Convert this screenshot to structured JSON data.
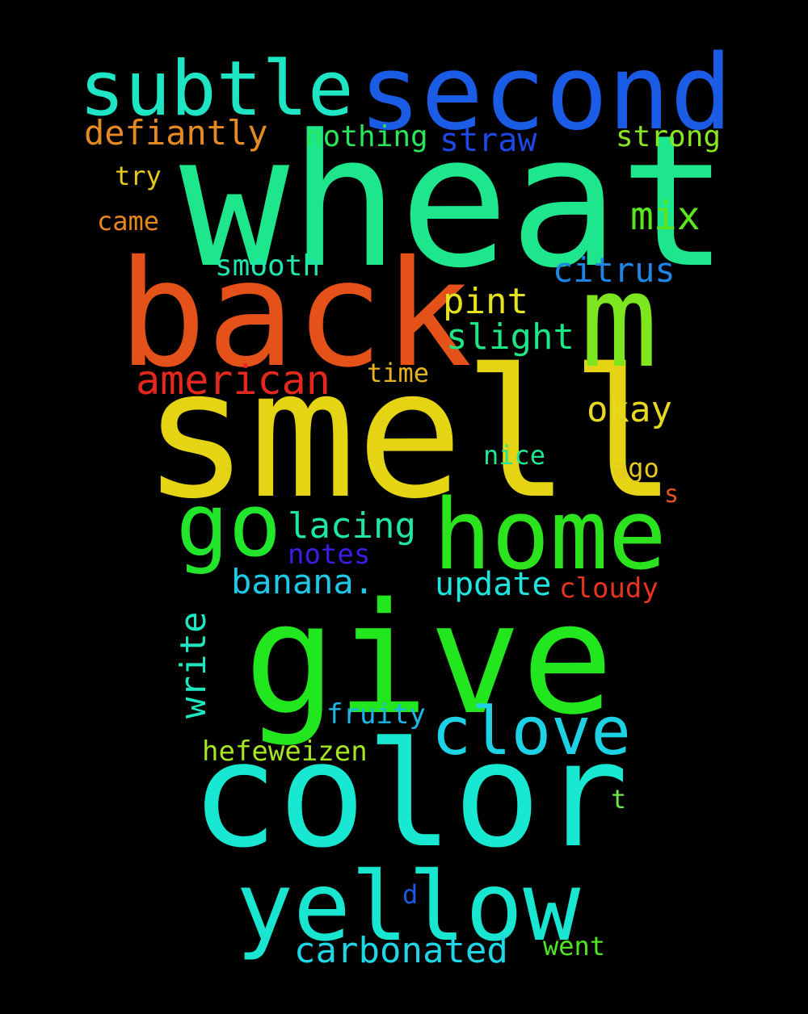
{
  "words": [
    {
      "text": "wheat",
      "color": "#1de68c"
    },
    {
      "text": "smell",
      "color": "#e4d414"
    },
    {
      "text": "back",
      "color": "#e4521a"
    },
    {
      "text": "give",
      "color": "#22e61e"
    },
    {
      "text": "color",
      "color": "#18e8d2"
    },
    {
      "text": "second",
      "color": "#1b5ce6"
    },
    {
      "text": "subtle",
      "color": "#1ee6c4"
    },
    {
      "text": "m",
      "color": "#7ee61e"
    },
    {
      "text": "home",
      "color": "#2ce41e"
    },
    {
      "text": "yellow",
      "color": "#18e6d0"
    },
    {
      "text": "go",
      "color": "#22e62c"
    },
    {
      "text": "clove",
      "color": "#1ed2e6"
    },
    {
      "text": "american",
      "color": "#e4281e"
    },
    {
      "text": "defiantly",
      "color": "#e68a22"
    },
    {
      "text": "carbonated",
      "color": "#1ed6e6"
    },
    {
      "text": "citrus",
      "color": "#1e86e6"
    },
    {
      "text": "banana.",
      "color": "#1ec8e6"
    },
    {
      "text": "update",
      "color": "#1ee6de"
    },
    {
      "text": "write",
      "color": "#1ee6c0"
    },
    {
      "text": "slight",
      "color": "#1ee684"
    },
    {
      "text": "lacing",
      "color": "#1ee6a6"
    },
    {
      "text": "mix",
      "color": "#5ae61e"
    },
    {
      "text": "okay",
      "color": "#e6d81e"
    },
    {
      "text": "pint",
      "color": "#e6e21e"
    },
    {
      "text": "straw",
      "color": "#1e48e6"
    },
    {
      "text": "nothing",
      "color": "#2ae65a"
    },
    {
      "text": "strong",
      "color": "#8ae61e"
    },
    {
      "text": "smooth",
      "color": "#1ee6b0"
    },
    {
      "text": "hefeweizen",
      "color": "#a6e61e"
    },
    {
      "text": "cloudy",
      "color": "#e6341e"
    },
    {
      "text": "notes",
      "color": "#3a1ee6"
    },
    {
      "text": "fruity",
      "color": "#1eb6e6"
    },
    {
      "text": "nice",
      "color": "#1ee692"
    },
    {
      "text": "came",
      "color": "#e6861e"
    },
    {
      "text": "try",
      "color": "#e6c81e"
    },
    {
      "text": "time",
      "color": "#e6b21e"
    },
    {
      "text": "ago",
      "color": "#e6c81e"
    },
    {
      "text": "went",
      "color": "#50e61e"
    },
    {
      "text": "s",
      "color": "#e6541e"
    },
    {
      "text": "t",
      "color": "#6ae64a"
    },
    {
      "text": "d",
      "color": "#1e56e6"
    }
  ]
}
